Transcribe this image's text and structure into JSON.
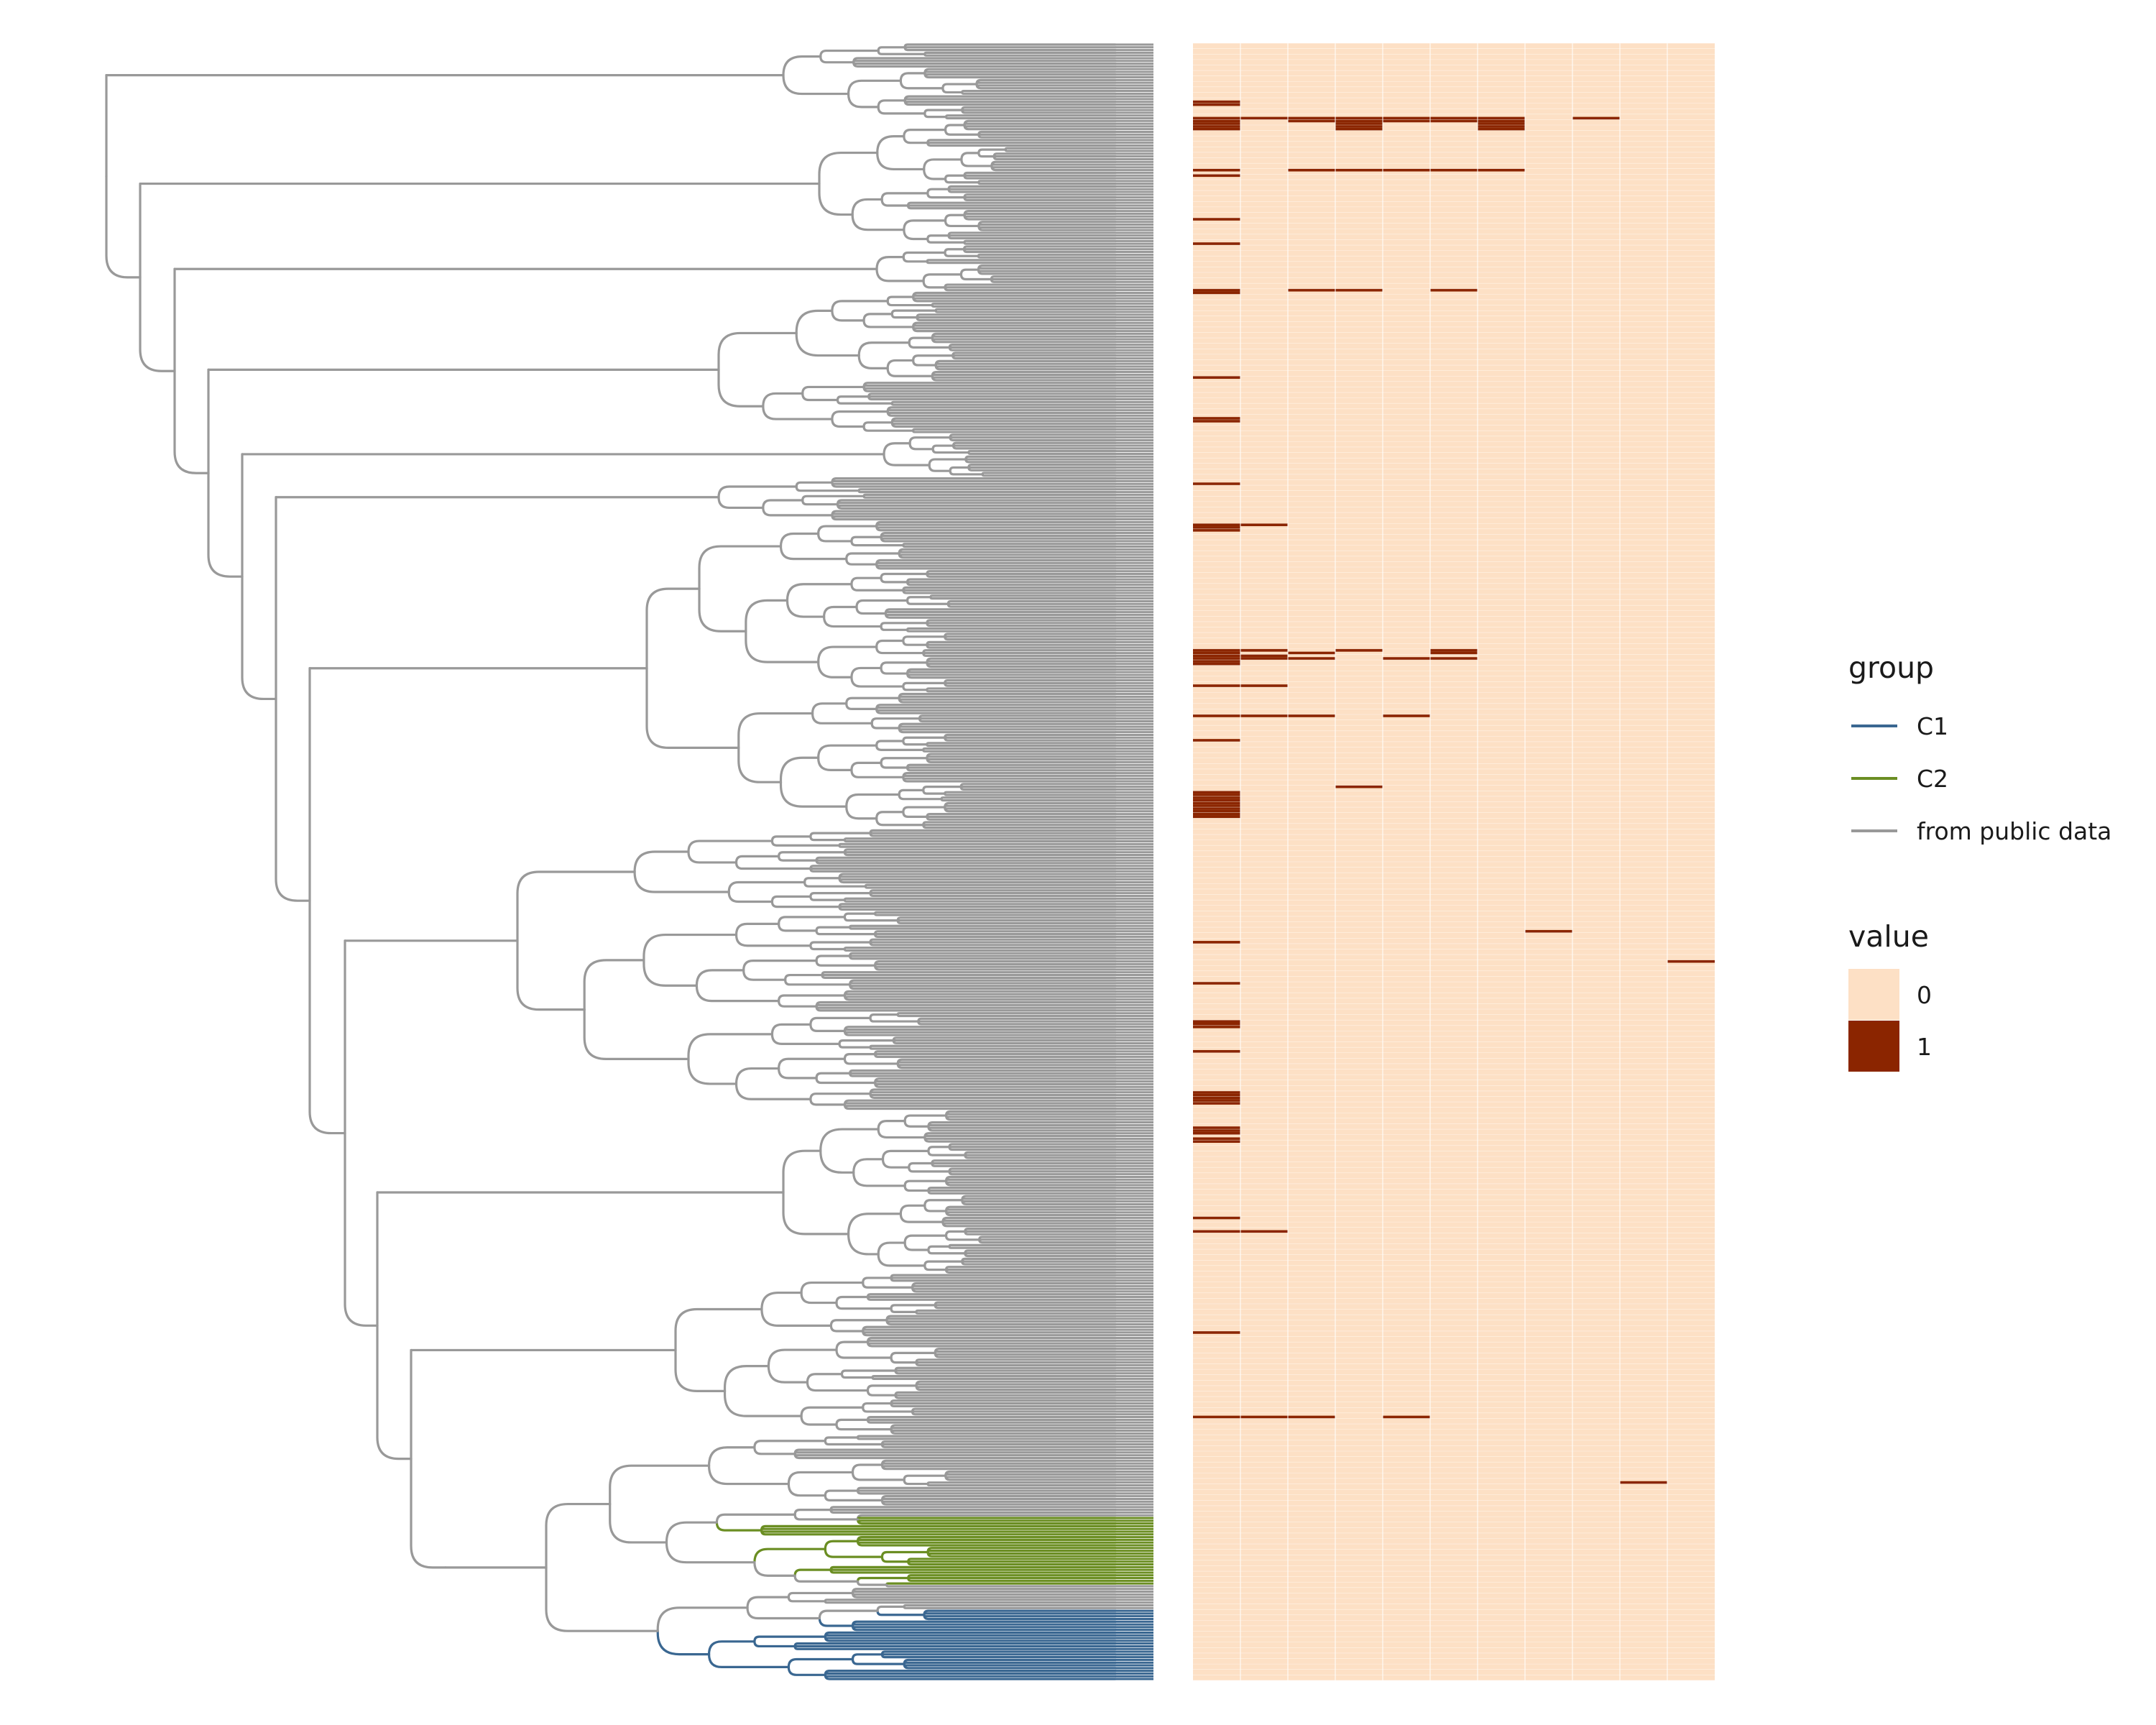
{
  "chart_data": {
    "type": "heatmap",
    "description_kind": "phylogenetic tree with binary presence/absence heatmap",
    "n_tips": 600,
    "n_columns": 11,
    "colors": {
      "C1": "#3a6791",
      "C2": "#6b8e23",
      "public": "#999999",
      "value_0": "#fde0c5",
      "value_1": "#8b2500"
    },
    "legend": {
      "group": {
        "title": "group",
        "items": [
          {
            "label": "C1",
            "color": "#3a6791"
          },
          {
            "label": "C2",
            "color": "#6b8e23"
          },
          {
            "label": "from public data",
            "color": "#999999"
          }
        ]
      },
      "value": {
        "title": "value",
        "items": [
          {
            "label": "0",
            "color": "#fde0c5"
          },
          {
            "label": "1",
            "color": "#8b2500"
          }
        ]
      }
    },
    "groups_by_tip_range": [
      {
        "group": "from public data",
        "from": 0,
        "to": 539
      },
      {
        "group": "C2",
        "from": 540,
        "to": 564
      },
      {
        "group": "from public data",
        "from": 565,
        "to": 573
      },
      {
        "group": "C1",
        "from": 574,
        "to": 599
      }
    ],
    "present_cells": [
      {
        "tips": [
          21,
          22
        ],
        "cols": [
          0
        ]
      },
      {
        "tips": [
          27
        ],
        "cols": [
          0,
          1,
          2,
          3,
          4,
          5,
          6,
          8
        ]
      },
      {
        "tips": [
          28
        ],
        "cols": [
          0,
          2,
          3,
          4,
          5,
          6
        ]
      },
      {
        "tips": [
          29,
          30,
          31
        ],
        "cols": [
          0,
          3,
          6
        ]
      },
      {
        "tips": [
          46
        ],
        "cols": [
          0,
          2,
          3,
          4,
          5,
          6
        ]
      },
      {
        "tips": [
          48
        ],
        "cols": [
          0
        ]
      },
      {
        "tips": [
          64
        ],
        "cols": [
          0
        ]
      },
      {
        "tips": [
          73
        ],
        "cols": [
          0
        ]
      },
      {
        "tips": [
          90
        ],
        "cols": [
          0,
          2,
          3,
          5
        ]
      },
      {
        "tips": [
          91
        ],
        "cols": [
          0
        ]
      },
      {
        "tips": [
          122
        ],
        "cols": [
          0
        ]
      },
      {
        "tips": [
          137,
          138
        ],
        "cols": [
          0
        ]
      },
      {
        "tips": [
          161
        ],
        "cols": [
          0
        ]
      },
      {
        "tips": [
          176
        ],
        "cols": [
          0,
          1
        ]
      },
      {
        "tips": [
          177,
          178
        ],
        "cols": [
          0
        ]
      },
      {
        "tips": [
          222
        ],
        "cols": [
          0,
          1,
          3,
          5
        ]
      },
      {
        "tips": [
          223
        ],
        "cols": [
          0,
          2,
          5
        ]
      },
      {
        "tips": [
          224
        ],
        "cols": [
          0,
          1
        ]
      },
      {
        "tips": [
          225
        ],
        "cols": [
          0,
          1,
          2,
          4,
          5
        ]
      },
      {
        "tips": [
          226,
          227
        ],
        "cols": [
          0
        ]
      },
      {
        "tips": [
          235
        ],
        "cols": [
          0,
          1
        ]
      },
      {
        "tips": [
          246
        ],
        "cols": [
          0,
          1,
          2,
          4
        ]
      },
      {
        "tips": [
          255
        ],
        "cols": [
          0
        ]
      },
      {
        "tips": [
          272
        ],
        "cols": [
          3
        ]
      },
      {
        "tips": [
          274,
          275,
          276,
          277,
          278,
          279,
          280,
          281,
          282,
          283
        ],
        "cols": [
          0
        ]
      },
      {
        "tips": [
          325
        ],
        "cols": [
          7
        ]
      },
      {
        "tips": [
          329
        ],
        "cols": [
          0
        ]
      },
      {
        "tips": [
          336
        ],
        "cols": [
          10
        ]
      },
      {
        "tips": [
          344
        ],
        "cols": [
          0
        ]
      },
      {
        "tips": [
          358,
          359,
          360
        ],
        "cols": [
          0
        ]
      },
      {
        "tips": [
          369
        ],
        "cols": [
          0
        ]
      },
      {
        "tips": [
          384,
          385,
          386,
          387,
          388
        ],
        "cols": [
          0
        ]
      },
      {
        "tips": [
          397,
          398,
          399,
          401,
          402
        ],
        "cols": [
          0
        ]
      },
      {
        "tips": [
          430
        ],
        "cols": [
          0
        ]
      },
      {
        "tips": [
          435
        ],
        "cols": [
          0,
          1
        ]
      },
      {
        "tips": [
          472
        ],
        "cols": [
          0
        ]
      },
      {
        "tips": [
          503
        ],
        "cols": [
          0,
          1,
          2,
          4
        ]
      },
      {
        "tips": [
          527
        ],
        "cols": [
          9
        ]
      }
    ]
  }
}
